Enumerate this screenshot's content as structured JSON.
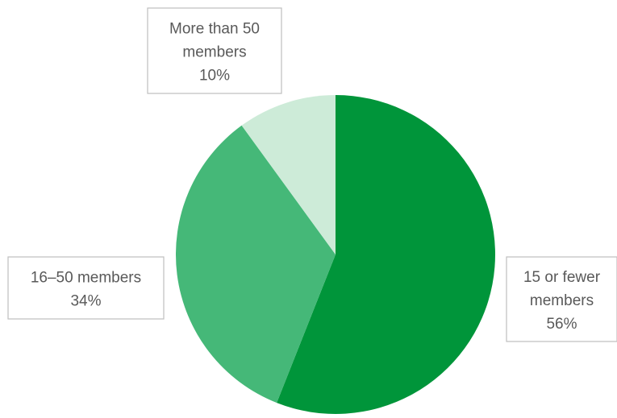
{
  "chart_data": {
    "type": "pie",
    "start_angle_deg": 0,
    "direction": "clockwise",
    "slices": [
      {
        "label_lines": [
          "15 or fewer",
          "members"
        ],
        "value": 56,
        "percent_label": "56%",
        "color": "#00953a"
      },
      {
        "label_lines": [
          "16–50 members"
        ],
        "value": 34,
        "percent_label": "34%",
        "color": "#45b878"
      },
      {
        "label_lines": [
          "More than 50",
          "members"
        ],
        "value": 10,
        "percent_label": "10%",
        "color": "#cdebd8"
      }
    ]
  }
}
